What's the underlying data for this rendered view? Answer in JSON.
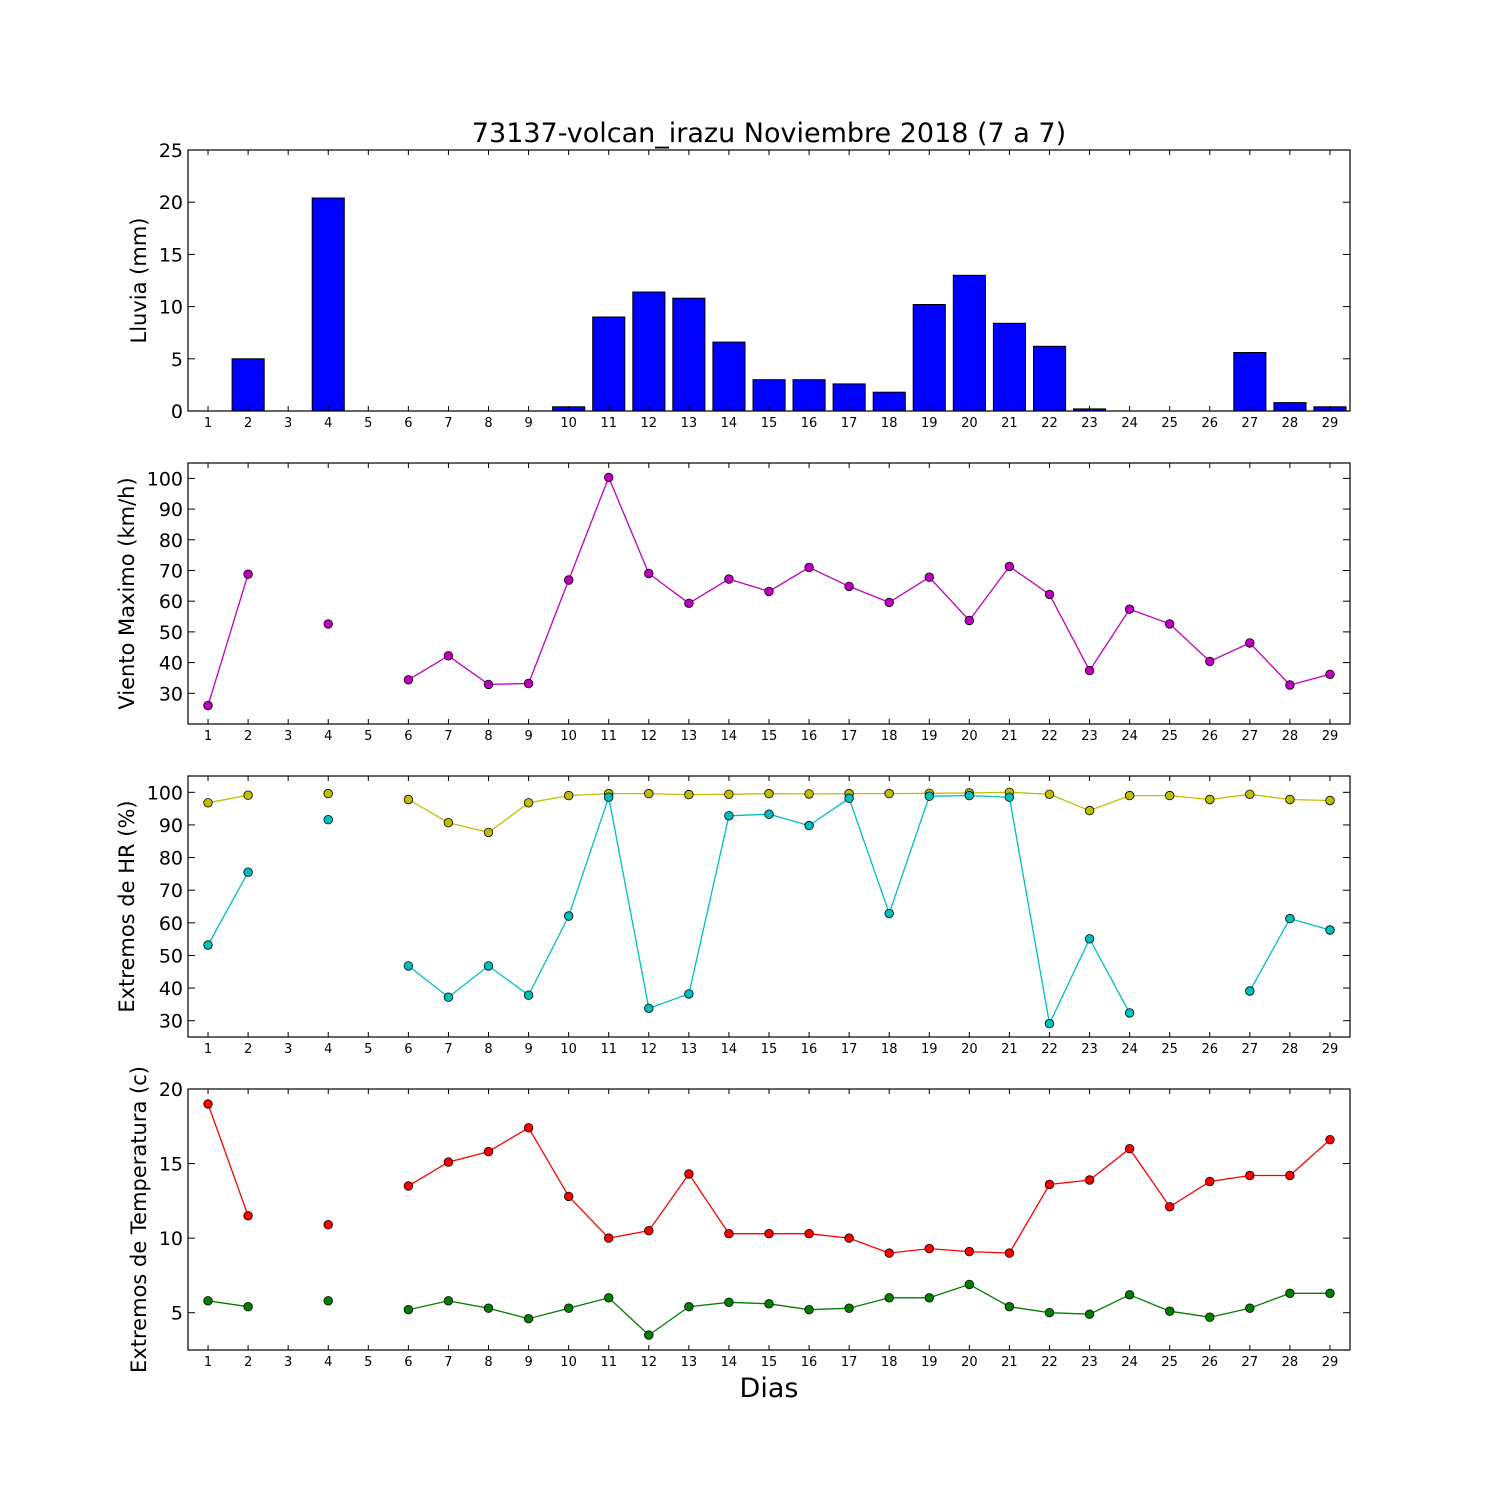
{
  "title": "73137-volcan_irazu Noviembre 2018  (7 a 7)",
  "xlabel": "Dias",
  "chart_data": [
    {
      "type": "bar",
      "ylabel": "Lluvia (mm)",
      "ylim": [
        0,
        25
      ],
      "yticks": [
        0,
        5,
        10,
        15,
        20,
        25
      ],
      "categories": [
        1,
        2,
        3,
        4,
        5,
        6,
        7,
        8,
        9,
        10,
        11,
        12,
        13,
        14,
        15,
        16,
        17,
        18,
        19,
        20,
        21,
        22,
        23,
        24,
        25,
        26,
        27,
        28,
        29
      ],
      "series": [
        {
          "color": "#0000ff",
          "values": [
            0,
            5.0,
            0,
            20.4,
            0,
            0,
            0,
            0,
            0,
            0.4,
            9.0,
            11.4,
            10.8,
            6.6,
            3.0,
            3.0,
            2.6,
            1.8,
            10.2,
            13.0,
            8.4,
            6.2,
            0.2,
            0,
            0,
            0,
            5.6,
            0.8,
            0.4
          ]
        }
      ]
    },
    {
      "type": "line",
      "ylabel": "Viento Maximo (km/h)",
      "ylim": [
        20,
        105
      ],
      "yticks": [
        30,
        40,
        50,
        60,
        70,
        80,
        90,
        100
      ],
      "categories": [
        1,
        2,
        3,
        4,
        5,
        6,
        7,
        8,
        9,
        10,
        11,
        12,
        13,
        14,
        15,
        16,
        17,
        18,
        19,
        20,
        21,
        22,
        23,
        24,
        25,
        26,
        27,
        28,
        29
      ],
      "series": [
        {
          "color": "#bf00bf",
          "values": [
            26,
            68.8,
            null,
            52.6,
            null,
            34.4,
            42.2,
            32.9,
            33.2,
            66.9,
            100.3,
            69,
            59.3,
            67.2,
            63.2,
            71,
            64.8,
            59.6,
            67.8,
            53.7,
            71.3,
            62.2,
            37.4,
            57.4,
            52.6,
            40.4,
            46.4,
            32.7,
            36.2
          ]
        }
      ]
    },
    {
      "type": "line",
      "ylabel": "Extremos de HR (%)",
      "ylim": [
        25,
        105
      ],
      "yticks": [
        30,
        40,
        50,
        60,
        70,
        80,
        90,
        100
      ],
      "categories": [
        1,
        2,
        3,
        4,
        5,
        6,
        7,
        8,
        9,
        10,
        11,
        12,
        13,
        14,
        15,
        16,
        17,
        18,
        19,
        20,
        21,
        22,
        23,
        24,
        25,
        26,
        27,
        28,
        29
      ],
      "series": [
        {
          "color": "#bfbf00",
          "values": [
            96.8,
            99.1,
            null,
            99.6,
            null,
            97.8,
            90.7,
            87.7,
            96.8,
            99,
            99.6,
            99.6,
            99.3,
            99.4,
            99.6,
            99.5,
            99.6,
            99.6,
            99.7,
            99.8,
            100,
            99.4,
            94.4,
            99,
            99,
            97.8,
            99.4,
            97.8,
            97.5
          ]
        },
        {
          "color": "#00bfbf",
          "values": [
            53.2,
            75.5,
            null,
            91.6,
            null,
            46.8,
            37.2,
            46.8,
            37.8,
            62.1,
            98.5,
            33.8,
            38.2,
            92.8,
            93.3,
            89.8,
            98.2,
            62.9,
            98.8,
            99,
            98.5,
            29.1,
            55.1,
            32.4,
            null,
            null,
            39.1,
            61.3,
            57.8
          ]
        }
      ]
    },
    {
      "type": "line",
      "ylabel": "Extremos de Temperatura (c)",
      "ylim": [
        2.5,
        20
      ],
      "yticks": [
        5,
        10,
        15,
        20
      ],
      "categories": [
        1,
        2,
        3,
        4,
        5,
        6,
        7,
        8,
        9,
        10,
        11,
        12,
        13,
        14,
        15,
        16,
        17,
        18,
        19,
        20,
        21,
        22,
        23,
        24,
        25,
        26,
        27,
        28,
        29
      ],
      "series": [
        {
          "color": "#ff0000",
          "values": [
            19.0,
            11.5,
            null,
            10.9,
            null,
            13.5,
            15.1,
            15.8,
            17.4,
            12.8,
            10.0,
            10.5,
            14.3,
            10.3,
            10.3,
            10.3,
            10.0,
            9.0,
            9.3,
            9.1,
            9.0,
            13.6,
            13.9,
            16.0,
            12.1,
            13.8,
            14.2,
            14.2,
            16.6
          ]
        },
        {
          "color": "#007f00",
          "values": [
            5.8,
            5.4,
            null,
            5.8,
            null,
            5.2,
            5.8,
            5.3,
            4.6,
            5.3,
            6.0,
            3.5,
            5.4,
            5.7,
            5.6,
            5.2,
            5.3,
            6.0,
            6.0,
            6.9,
            5.4,
            5.0,
            4.9,
            6.2,
            5.1,
            4.7,
            5.3,
            6.3,
            6.3
          ]
        }
      ]
    }
  ]
}
